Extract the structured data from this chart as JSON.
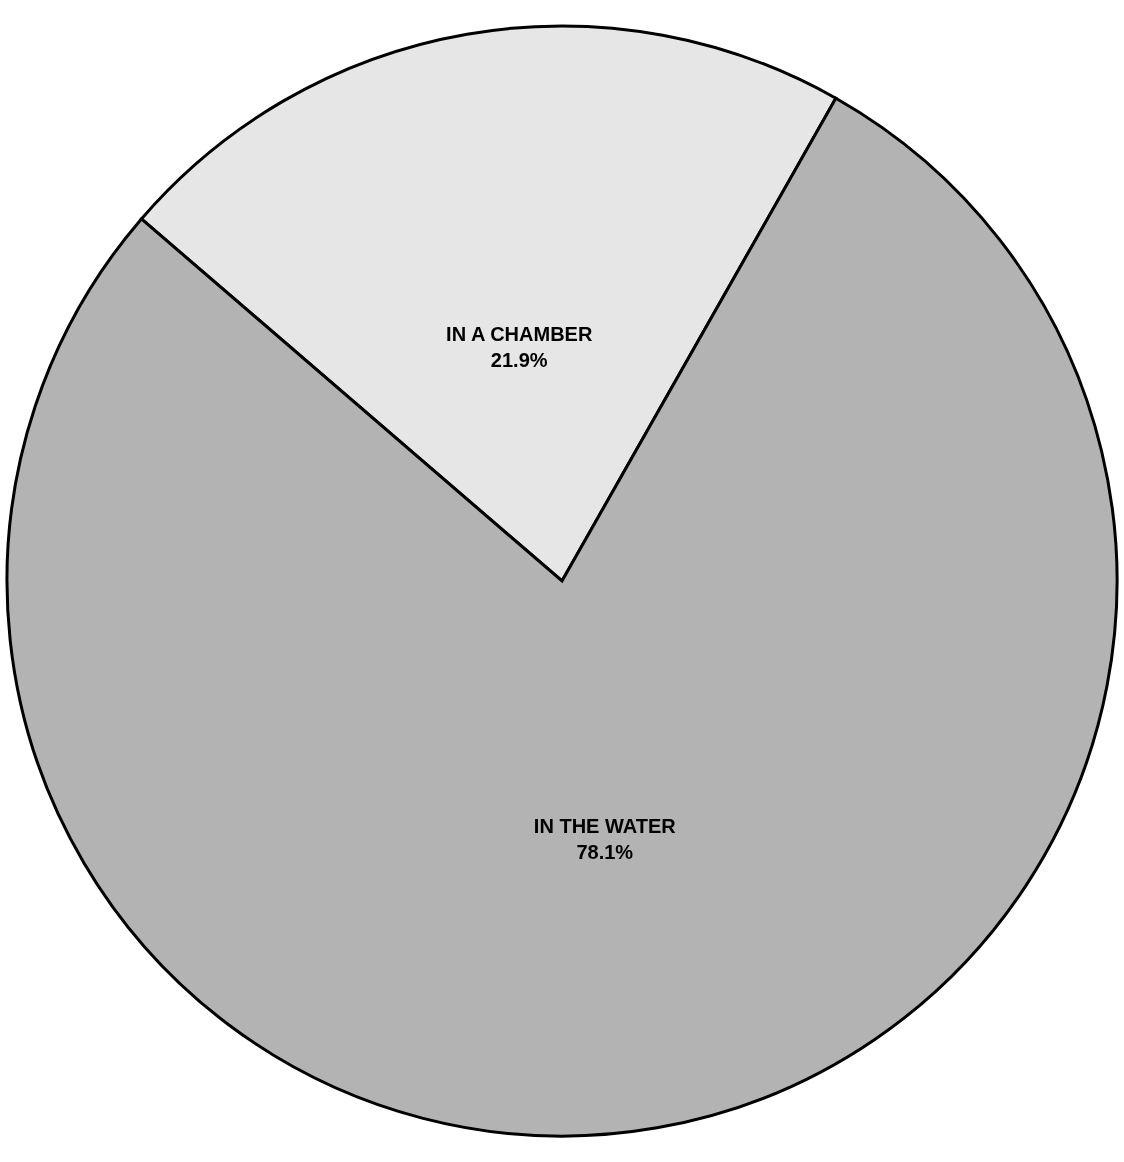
{
  "chart_data": {
    "type": "pie",
    "categories": [
      "IN A CHAMBER",
      "IN THE WATER"
    ],
    "values": [
      21.9,
      78.1
    ],
    "value_labels": [
      "21.9%",
      "78.1%"
    ],
    "colors": [
      "#e6e6e6",
      "#b3b3b3"
    ],
    "legend": false
  }
}
